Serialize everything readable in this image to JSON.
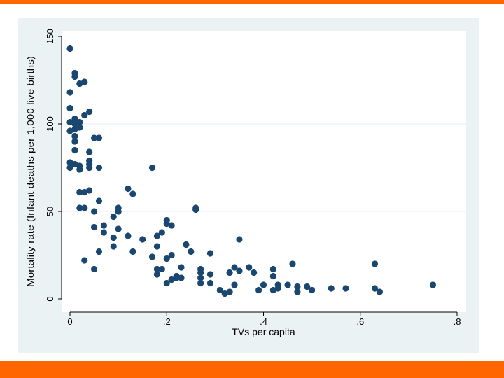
{
  "colors": {
    "accent_bar": "#ff6600",
    "panel_bg": "#eaf2f3",
    "plot_bg": "#ffffff",
    "grid": "#e6eef0",
    "marker": "#1a476f",
    "axis": "#000000"
  },
  "chart_data": {
    "type": "scatter",
    "title": "",
    "xlabel": "TVs per capita",
    "ylabel": "Mortality rate (Infant deaths per 1,000 live births)",
    "xlim": [
      0,
      0.8
    ],
    "ylim": [
      0,
      150
    ],
    "xticks": [
      {
        "value": 0,
        "label": "0"
      },
      {
        "value": 0.2,
        "label": ".2"
      },
      {
        "value": 0.4,
        "label": ".4"
      },
      {
        "value": 0.6,
        "label": ".6"
      },
      {
        "value": 0.8,
        "label": ".8"
      }
    ],
    "yticks": [
      {
        "value": 0,
        "label": "0"
      },
      {
        "value": 50,
        "label": "50"
      },
      {
        "value": 100,
        "label": "100"
      },
      {
        "value": 150,
        "label": "150"
      }
    ],
    "grid": "horizontal",
    "legend": "none",
    "points": [
      [
        0.0,
        143
      ],
      [
        0.0,
        118
      ],
      [
        0.0,
        109
      ],
      [
        0.0,
        101
      ],
      [
        0.0,
        96
      ],
      [
        0.0,
        78
      ],
      [
        0.0,
        75
      ],
      [
        0.01,
        129
      ],
      [
        0.01,
        127
      ],
      [
        0.01,
        103
      ],
      [
        0.01,
        100
      ],
      [
        0.01,
        97
      ],
      [
        0.01,
        93
      ],
      [
        0.01,
        90
      ],
      [
        0.01,
        85
      ],
      [
        0.01,
        77
      ],
      [
        0.02,
        123
      ],
      [
        0.02,
        101
      ],
      [
        0.02,
        98
      ],
      [
        0.02,
        76
      ],
      [
        0.02,
        74
      ],
      [
        0.02,
        61
      ],
      [
        0.02,
        52
      ],
      [
        0.03,
        124
      ],
      [
        0.03,
        105
      ],
      [
        0.03,
        61
      ],
      [
        0.03,
        52
      ],
      [
        0.03,
        22
      ],
      [
        0.04,
        107
      ],
      [
        0.04,
        84
      ],
      [
        0.04,
        79
      ],
      [
        0.04,
        77
      ],
      [
        0.04,
        75
      ],
      [
        0.04,
        62
      ],
      [
        0.05,
        92
      ],
      [
        0.05,
        50
      ],
      [
        0.05,
        41
      ],
      [
        0.05,
        17
      ],
      [
        0.06,
        92
      ],
      [
        0.06,
        75
      ],
      [
        0.06,
        56
      ],
      [
        0.06,
        27
      ],
      [
        0.07,
        42
      ],
      [
        0.07,
        38
      ],
      [
        0.09,
        47
      ],
      [
        0.09,
        35
      ],
      [
        0.09,
        30
      ],
      [
        0.1,
        52
      ],
      [
        0.1,
        50
      ],
      [
        0.1,
        40
      ],
      [
        0.12,
        63
      ],
      [
        0.12,
        36
      ],
      [
        0.13,
        60
      ],
      [
        0.13,
        27
      ],
      [
        0.15,
        34
      ],
      [
        0.17,
        75
      ],
      [
        0.17,
        24
      ],
      [
        0.18,
        36
      ],
      [
        0.18,
        30
      ],
      [
        0.18,
        17
      ],
      [
        0.18,
        14
      ],
      [
        0.19,
        38
      ],
      [
        0.19,
        17
      ],
      [
        0.2,
        45
      ],
      [
        0.2,
        43
      ],
      [
        0.2,
        23
      ],
      [
        0.2,
        9
      ],
      [
        0.21,
        42
      ],
      [
        0.21,
        25
      ],
      [
        0.21,
        11
      ],
      [
        0.22,
        13
      ],
      [
        0.22,
        12
      ],
      [
        0.23,
        18
      ],
      [
        0.23,
        12
      ],
      [
        0.24,
        31
      ],
      [
        0.25,
        27
      ],
      [
        0.26,
        51
      ],
      [
        0.26,
        52
      ],
      [
        0.27,
        17
      ],
      [
        0.27,
        15
      ],
      [
        0.27,
        12
      ],
      [
        0.27,
        9
      ],
      [
        0.29,
        26
      ],
      [
        0.29,
        14
      ],
      [
        0.29,
        9
      ],
      [
        0.31,
        5
      ],
      [
        0.32,
        3
      ],
      [
        0.33,
        15
      ],
      [
        0.33,
        4
      ],
      [
        0.34,
        18
      ],
      [
        0.34,
        8
      ],
      [
        0.35,
        34
      ],
      [
        0.35,
        16
      ],
      [
        0.37,
        18
      ],
      [
        0.38,
        15
      ],
      [
        0.39,
        5
      ],
      [
        0.4,
        8
      ],
      [
        0.42,
        17
      ],
      [
        0.42,
        13
      ],
      [
        0.42,
        5
      ],
      [
        0.43,
        8
      ],
      [
        0.43,
        6
      ],
      [
        0.45,
        8
      ],
      [
        0.46,
        20
      ],
      [
        0.47,
        7
      ],
      [
        0.47,
        4
      ],
      [
        0.49,
        7
      ],
      [
        0.5,
        5
      ],
      [
        0.54,
        6
      ],
      [
        0.57,
        6
      ],
      [
        0.63,
        20
      ],
      [
        0.63,
        6
      ],
      [
        0.64,
        4
      ],
      [
        0.75,
        8
      ]
    ]
  }
}
